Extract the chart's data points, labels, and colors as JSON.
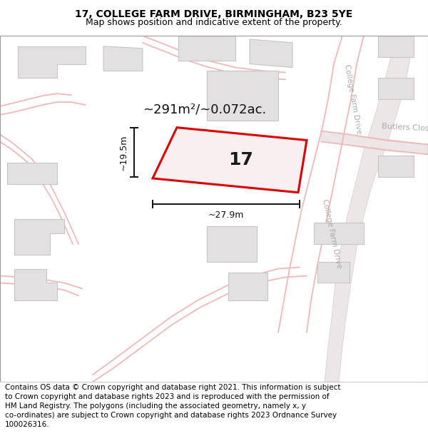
{
  "title": "17, COLLEGE FARM DRIVE, BIRMINGHAM, B23 5YE",
  "subtitle": "Map shows position and indicative extent of the property.",
  "footer": "Contains OS data © Crown copyright and database right 2021. This information is subject to Crown copyright and database rights 2023 and is reproduced with the permission of HM Land Registry. The polygons (including the associated geometry, namely x, y co-ordinates) are subject to Crown copyright and database rights 2023 Ordnance Survey 100026316.",
  "bg_color": "#ffffff",
  "map_bg": "#f5f3f3",
  "title_fontsize": 10,
  "subtitle_fontsize": 9,
  "footer_fontsize": 7.5,
  "area_text": "~291m²/~0.072ac.",
  "width_text": "~27.9m",
  "height_text": "~19.5m",
  "property_number": "17",
  "road_color": "#f0b8b8",
  "building_fill": "#e2e0e0",
  "building_edge": "#c8c4c4",
  "highlight_color": "#dd0000",
  "street_label_color": "#b0a8a8",
  "road_fill": "#ede8e8",
  "road_edge": "#e0c8c8",
  "dim_color": "#111111",
  "title_bg": "#ffffff",
  "footer_bg": "#ffffff",
  "sep_color": "#cccccc"
}
